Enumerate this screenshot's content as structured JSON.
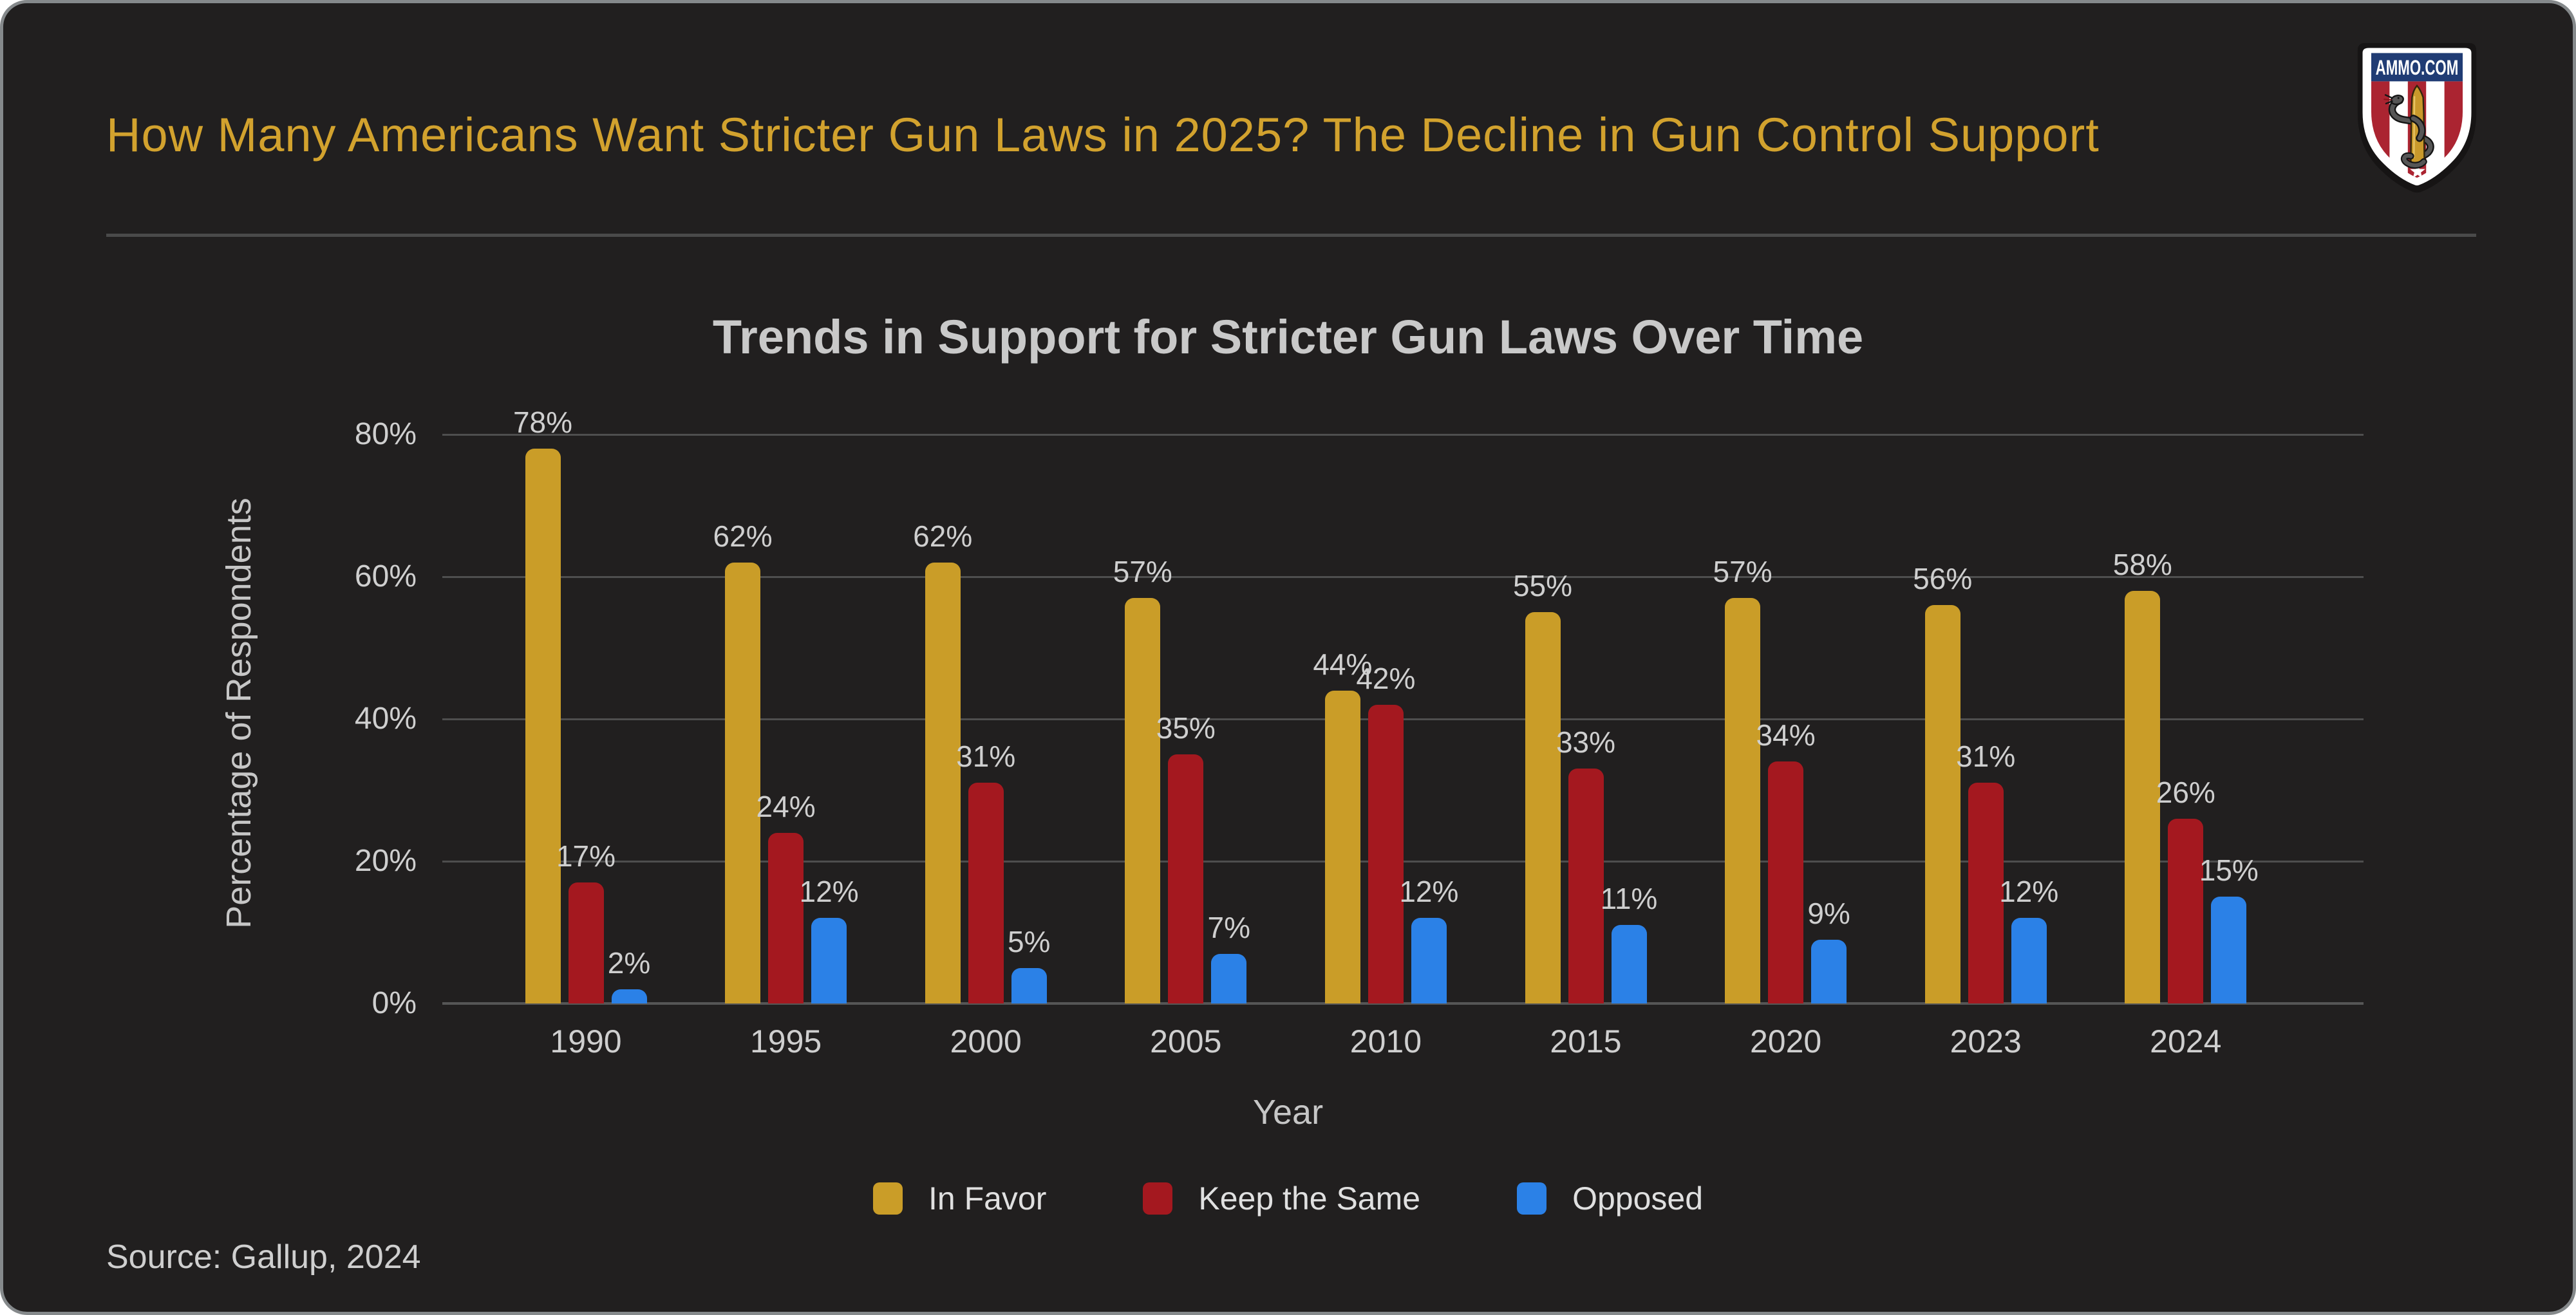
{
  "header": {
    "title": "How Many Americans Want Stricter Gun Laws in 2025? The Decline in Gun Control Support",
    "title_color": "#D2A22E",
    "logo_text": "AMMO.COM"
  },
  "footer": {
    "source": "Source: Gallup, 2024"
  },
  "chart_data": {
    "type": "bar",
    "title": "Trends in Support for Stricter Gun Laws Over Time",
    "xlabel": "Year",
    "ylabel": "Percentage of Respondents",
    "categories": [
      "1990",
      "1995",
      "2000",
      "2005",
      "2010",
      "2015",
      "2020",
      "2023",
      "2024"
    ],
    "series": [
      {
        "name": "In Favor",
        "color": "#CA9D28",
        "values": [
          78,
          62,
          62,
          57,
          44,
          55,
          57,
          56,
          58
        ]
      },
      {
        "name": "Keep the Same",
        "color": "#A4181F",
        "values": [
          17,
          24,
          31,
          35,
          42,
          33,
          34,
          31,
          26
        ]
      },
      {
        "name": "Opposed",
        "color": "#2B81E7",
        "values": [
          2,
          12,
          5,
          7,
          12,
          11,
          9,
          12,
          15
        ]
      }
    ],
    "ylim": [
      0,
      80
    ],
    "yticks": [
      0,
      20,
      40,
      60,
      80
    ],
    "ytick_suffix": "%",
    "value_suffix": "%",
    "grid": true,
    "gridline_color": "#4E4E4E",
    "legend_position": "bottom",
    "background_color": "#211F1F"
  }
}
